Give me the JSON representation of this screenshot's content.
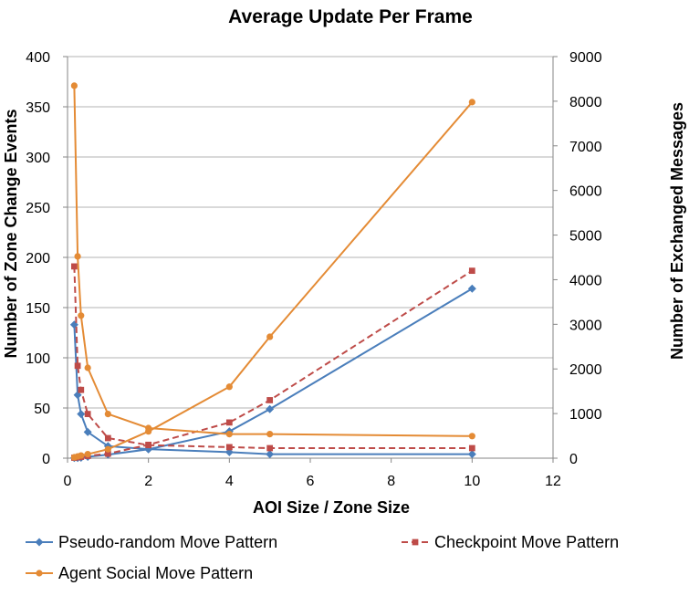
{
  "chart_data": {
    "type": "line",
    "title": "Average Update Per Frame",
    "xlabel": "AOI Size / Zone Size",
    "ylabel_left": "Number of Zone Change Events",
    "ylabel_right": "Number of Exchanged Messages",
    "xlim": [
      0,
      12
    ],
    "ylim_left": [
      0,
      400
    ],
    "ylim_right": [
      0,
      9000
    ],
    "x_ticks": [
      "0",
      "2",
      "4",
      "6",
      "8",
      "10",
      "12"
    ],
    "y_left_ticks": [
      "0",
      "50",
      "100",
      "150",
      "200",
      "250",
      "300",
      "350",
      "400"
    ],
    "y_right_ticks": [
      "0",
      "1000",
      "2000",
      "3000",
      "4000",
      "5000",
      "6000",
      "7000",
      "8000",
      "9000"
    ],
    "grid": "horizontal",
    "legend_position": "bottom",
    "legend": [
      {
        "label": "Pseudo-random Move Pattern",
        "color": "#4a7ebb",
        "marker": "diamond",
        "dash": "solid"
      },
      {
        "label": "Checkpoint Move Pattern",
        "color": "#be4b48",
        "marker": "square",
        "dash": "dashed"
      },
      {
        "label": "Agent Social Move Pattern",
        "color": "#e48b35",
        "marker": "circle",
        "dash": "solid"
      }
    ],
    "series": [
      {
        "name": "Pseudo-random Move Pattern",
        "axis": "left",
        "color": "#4a7ebb",
        "marker": "diamond",
        "dash": "solid",
        "x": [
          0.1667,
          0.25,
          0.3333,
          0.5,
          1,
          2,
          4,
          5,
          10
        ],
        "y": [
          133,
          63,
          44,
          26,
          12,
          9,
          6,
          4,
          4
        ]
      },
      {
        "name": "Pseudo-random Move Pattern",
        "axis": "right",
        "color": "#4a7ebb",
        "marker": "diamond",
        "dash": "solid",
        "x": [
          0.1667,
          0.25,
          0.3333,
          0.5,
          1,
          2,
          4,
          5,
          10
        ],
        "y": [
          5,
          5,
          10,
          30,
          80,
          200,
          600,
          1100,
          3800
        ]
      },
      {
        "name": "Checkpoint Move Pattern",
        "axis": "left",
        "color": "#be4b48",
        "marker": "square",
        "dash": "dashed",
        "x": [
          0.1667,
          0.25,
          0.3333,
          0.5,
          1,
          2,
          4,
          5,
          10
        ],
        "y": [
          191,
          92,
          68,
          44,
          20,
          13,
          11,
          10,
          10
        ]
      },
      {
        "name": "Checkpoint Move Pattern",
        "axis": "right",
        "color": "#be4b48",
        "marker": "square",
        "dash": "dashed",
        "x": [
          0.1667,
          0.25,
          0.3333,
          0.5,
          1,
          2,
          4,
          5,
          10
        ],
        "y": [
          10,
          20,
          30,
          50,
          100,
          300,
          800,
          1300,
          4200
        ]
      },
      {
        "name": "Agent Social Move Pattern",
        "axis": "left",
        "color": "#e48b35",
        "marker": "circle",
        "dash": "solid",
        "x": [
          0.1667,
          0.25,
          0.3333,
          0.5,
          1,
          2,
          4,
          5,
          10
        ],
        "y": [
          371,
          201,
          142,
          90,
          44,
          30,
          24,
          24,
          22
        ]
      },
      {
        "name": "Agent Social Move Pattern",
        "axis": "right",
        "color": "#e48b35",
        "marker": "circle",
        "dash": "solid",
        "x": [
          0.1667,
          0.25,
          0.3333,
          0.5,
          1,
          2,
          4,
          5,
          10
        ],
        "y": [
          20,
          40,
          60,
          90,
          200,
          600,
          1600,
          2720,
          7980
        ]
      }
    ]
  }
}
